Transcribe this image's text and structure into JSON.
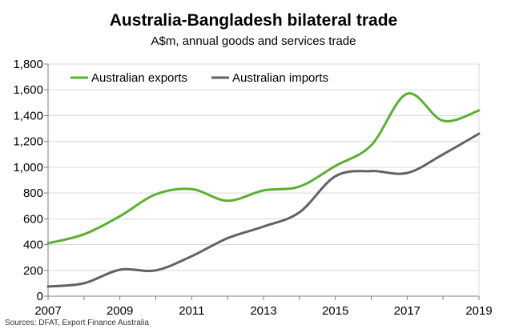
{
  "colors": {
    "exports": "#5ab030",
    "imports": "#5f6368",
    "axis": "#7f7f7f",
    "grid": "#d9d9d9"
  },
  "chart_data": {
    "type": "line",
    "title": "Australia-Bangladesh bilateral trade",
    "subtitle": "A$m, annual goods and services trade",
    "source": "Sources: DFAT, Export Finance Australia",
    "x": [
      2007,
      2008,
      2009,
      2010,
      2011,
      2012,
      2013,
      2014,
      2015,
      2016,
      2017,
      2018,
      2019
    ],
    "x_tick_labels": [
      "2007",
      "2009",
      "2011",
      "2013",
      "2015",
      "2017",
      "2019"
    ],
    "y_tick_labels": [
      "0",
      "200",
      "400",
      "600",
      "800",
      "1,000",
      "1,200",
      "1,400",
      "1,600",
      "1,800"
    ],
    "ylim": [
      0,
      1800
    ],
    "xlim": [
      2007,
      2019
    ],
    "grid": "horizontal",
    "legend_position": "top-left",
    "series": [
      {
        "name": "Australian exports",
        "color_key": "exports",
        "values": [
          410,
          480,
          620,
          790,
          830,
          740,
          820,
          850,
          1010,
          1170,
          1570,
          1360,
          1440
        ]
      },
      {
        "name": "Australian imports",
        "color_key": "imports",
        "values": [
          75,
          100,
          205,
          200,
          310,
          450,
          540,
          650,
          930,
          970,
          955,
          1100,
          1260
        ]
      }
    ]
  }
}
